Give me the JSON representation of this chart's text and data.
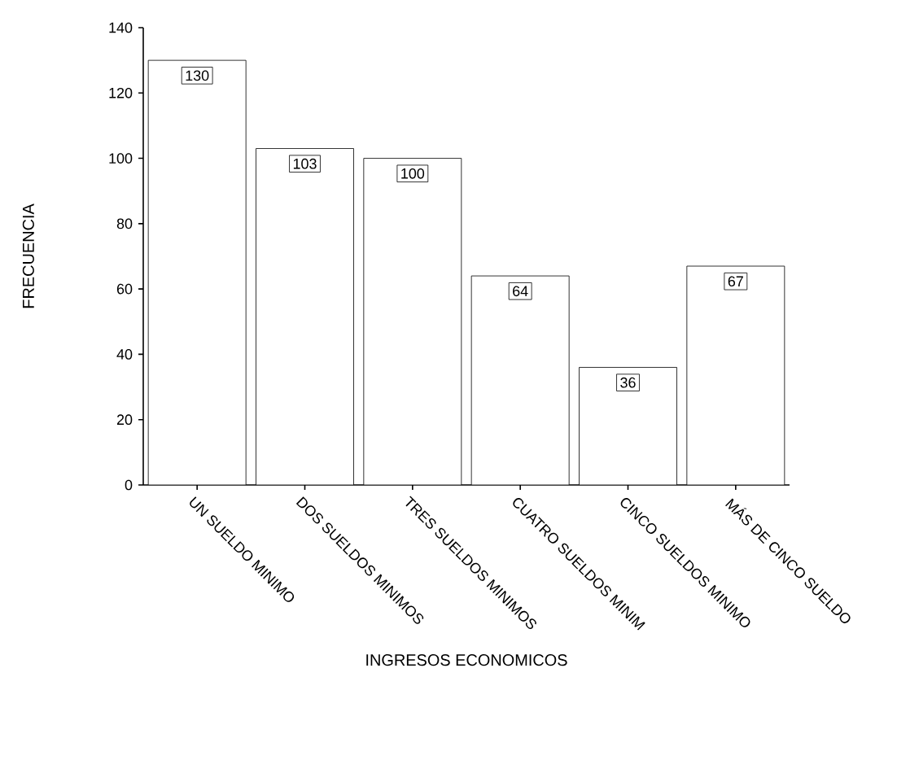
{
  "chart_data": {
    "type": "bar",
    "xlabel": "INGRESOS ECONOMICOS",
    "ylabel": "FRECUENCIA",
    "categories": [
      "UN SUELDO MINIMO",
      "DOS SUELDOS MINIMOS",
      "TRES SUELDOS MINIMOS",
      "CUATRO SUELDOS MINIM",
      "CINCO SUELDOS MINIMO",
      "MÁS DE CINCO SUELDO"
    ],
    "values": [
      130,
      103,
      100,
      64,
      36,
      67
    ],
    "color": "#ffffff",
    "ylim": [
      0,
      140
    ],
    "yticks": [
      0,
      20,
      40,
      60,
      80,
      100,
      120,
      140
    ],
    "data_labels": true
  }
}
